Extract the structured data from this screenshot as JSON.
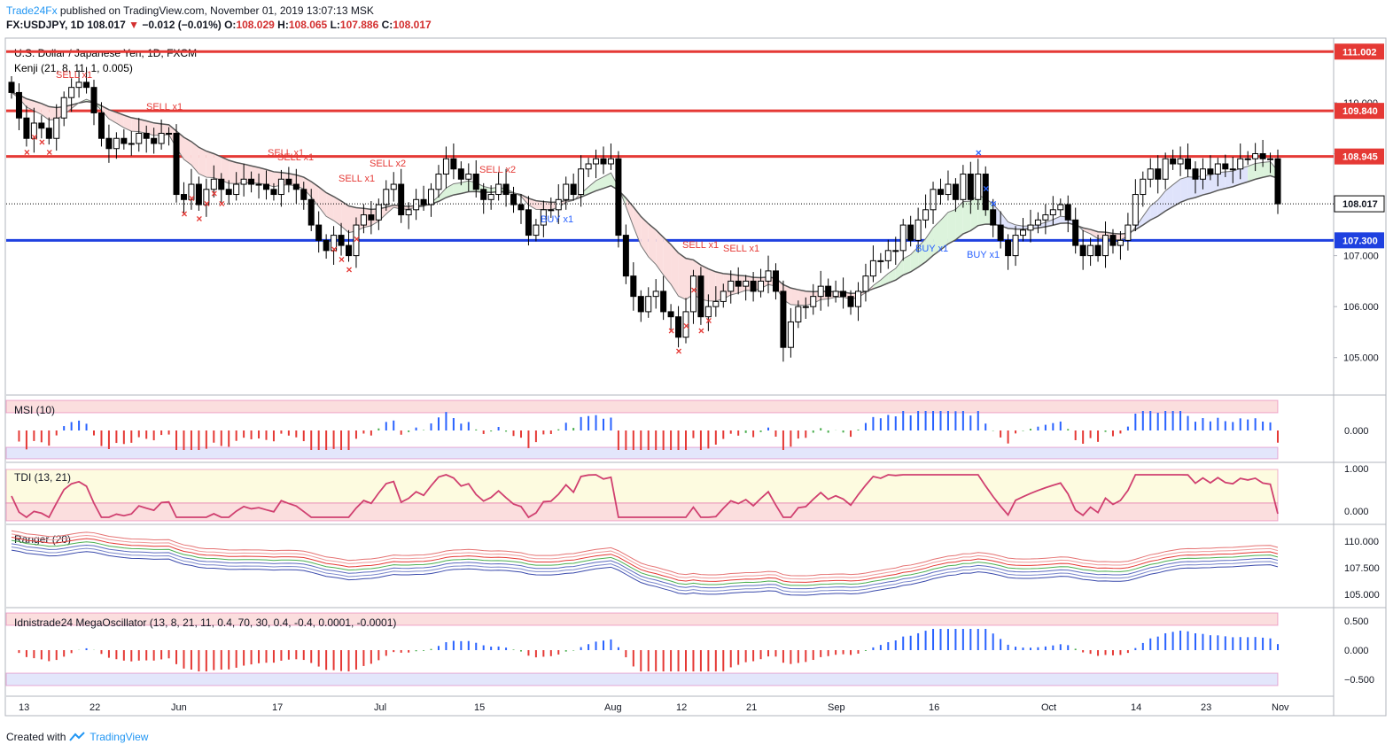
{
  "header": {
    "brand": "Trade24Fx",
    "published": " published on TradingView.com, November 01, 2019 13:07:13 MSK",
    "symbol": "FX:USDJPY, 1D",
    "last": "108.017",
    "change": "−0.012 (−0.01%)",
    "o_label": "O:",
    "o": "108.029",
    "h_label": "H:",
    "h": "108.065",
    "l_label": "L:",
    "l": "107.886",
    "c_label": "C:",
    "c": "108.017"
  },
  "footer": {
    "created": "Created with",
    "brand": "TradingView"
  },
  "chart_data": {
    "type": "candlestick",
    "title": "U.S. Dollar / Japanese Yen, 1D, FXCM",
    "indicator_label": "Kenji (21, 8, 11, 1, 0.005)",
    "ylim": [
      104.3,
      111.25
    ],
    "y_ticks": [
      "110.000",
      "109.000",
      "108.000",
      "107.000",
      "106.000",
      "105.000"
    ],
    "x_ticks": [
      "13",
      "22",
      "Jun",
      "17",
      "Jul",
      "15",
      "Aug",
      "12",
      "21",
      "Sep",
      "16",
      "Oct",
      "14",
      "23",
      "Nov"
    ],
    "last_price": 108.017,
    "last_price_label": "108.017",
    "levels": [
      {
        "value": 111.002,
        "label": "111.002",
        "color": "#e53935"
      },
      {
        "value": 109.84,
        "label": "109.840",
        "color": "#e53935"
      },
      {
        "value": 108.945,
        "label": "108.945",
        "color": "#e53935"
      },
      {
        "value": 107.3,
        "label": "107.300",
        "color": "#1e40e0"
      }
    ],
    "closes": [
      110.2,
      109.7,
      109.3,
      109.6,
      109.5,
      109.3,
      109.7,
      110.1,
      110.3,
      110.4,
      110.3,
      109.8,
      109.3,
      109.1,
      109.3,
      109.2,
      109.2,
      109.4,
      109.3,
      109.2,
      109.4,
      109.4,
      108.2,
      108.1,
      108.4,
      108.0,
      108.3,
      108.5,
      108.3,
      108.2,
      108.4,
      108.5,
      108.4,
      108.4,
      108.3,
      108.2,
      108.5,
      108.4,
      108.3,
      108.1,
      107.6,
      107.3,
      107.1,
      107.4,
      107.2,
      107.0,
      107.6,
      107.8,
      107.7,
      108.0,
      108.3,
      108.4,
      107.8,
      107.9,
      108.1,
      108.0,
      108.3,
      108.6,
      108.9,
      108.7,
      108.5,
      108.6,
      108.3,
      108.1,
      108.2,
      108.4,
      108.2,
      108.0,
      107.9,
      107.4,
      107.6,
      107.9,
      107.9,
      108.1,
      108.4,
      108.2,
      108.7,
      108.8,
      108.9,
      108.8,
      108.9,
      107.4,
      106.6,
      106.2,
      105.9,
      106.2,
      106.3,
      105.9,
      105.8,
      105.4,
      105.9,
      106.6,
      105.8,
      106.0,
      106.1,
      106.3,
      106.5,
      106.4,
      106.5,
      106.3,
      106.5,
      106.7,
      106.3,
      105.2,
      105.7,
      106.0,
      106.0,
      106.2,
      106.4,
      106.2,
      106.3,
      106.2,
      106.0,
      106.3,
      106.6,
      106.9,
      106.9,
      107.1,
      107.1,
      107.6,
      107.3,
      107.7,
      107.9,
      108.3,
      108.2,
      108.4,
      108.1,
      108.6,
      108.1,
      108.6,
      107.9,
      107.6,
      107.3,
      107.0,
      107.4,
      107.5,
      107.6,
      107.7,
      107.8,
      107.9,
      108.0,
      107.7,
      107.2,
      107.0,
      107.2,
      107.0,
      107.4,
      107.2,
      107.3,
      107.6,
      108.2,
      108.5,
      108.7,
      108.5,
      108.9,
      108.8,
      108.9,
      108.7,
      108.5,
      108.7,
      108.6,
      108.8,
      108.7,
      108.7,
      108.9,
      108.9,
      109.0,
      108.9,
      108.9,
      108.017
    ],
    "buy_labels": [
      "BUY x1",
      "BUY x1",
      "BUY x1"
    ],
    "sell_labels": [
      "SELL x1",
      "SELL x1",
      "SELL x1",
      "SELL x1",
      "SELL x1",
      "SELL x2",
      "SELL x2",
      "SELL x1",
      "SELL x1"
    ],
    "panels": [
      {
        "name": "MSI (10)",
        "ticks": [
          "0.000"
        ]
      },
      {
        "name": "TDI (13, 21)",
        "ticks": [
          "1.000",
          "0.000"
        ]
      },
      {
        "name": "Ranger (20)",
        "ticks": [
          "110.000",
          "107.500",
          "105.000"
        ]
      },
      {
        "name": "Idnistrade24 MegaOscillator (13, 8, 21, 11, 0.4, 70, 30, 0.4, -0.4, 0.0001, -0.0001)",
        "ticks": [
          "0.500",
          "0.000",
          "−0.500"
        ]
      }
    ]
  }
}
